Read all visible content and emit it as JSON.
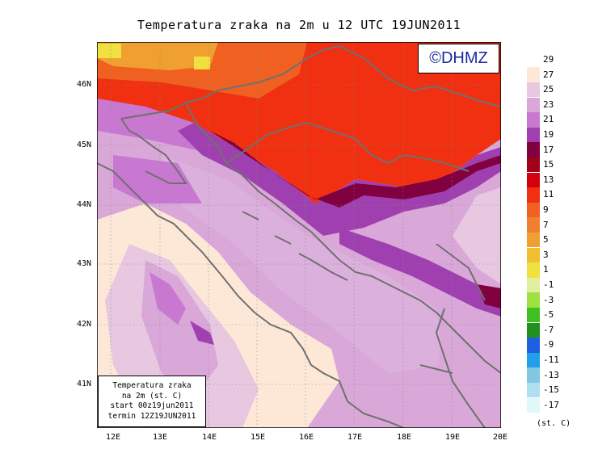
{
  "title": "Temperatura zraka na 2m u 12 UTC 19JUN2011",
  "logo_text": "©DHMZ",
  "info_box": {
    "line1": "Temperatura zraka",
    "line2": "na 2m (st. C)",
    "line3": "start 00z19jun2011",
    "line4": "termin 12Z19JUN2011"
  },
  "lon_ticks": [
    "12E",
    "13E",
    "14E",
    "15E",
    "16E",
    "17E",
    "18E",
    "19E",
    "20E"
  ],
  "lat_ticks": [
    "46N",
    "45N",
    "44N",
    "43N",
    "42N",
    "41N"
  ],
  "colorbar": {
    "units": "(st. C)",
    "levels": [
      "29",
      "27",
      "25",
      "23",
      "21",
      "19",
      "17",
      "15",
      "13",
      "11",
      "9",
      "7",
      "5",
      "3",
      "1",
      "-1",
      "-3",
      "-5",
      "-7",
      "-9",
      "-11",
      "-13",
      "-15",
      "-17"
    ],
    "colors": [
      "#fde8d8",
      "#e8c8e0",
      "#d9a8d8",
      "#c878d0",
      "#a040b0",
      "#800040",
      "#a00018",
      "#d40010",
      "#f03010",
      "#f06020",
      "#f08030",
      "#f0a030",
      "#f0c030",
      "#f0e040",
      "#e0f0a0",
      "#a0e040",
      "#40c020",
      "#209020",
      "#2060e0",
      "#20a0e8",
      "#80c8e0",
      "#b0e0f0",
      "#e0f8f8"
    ]
  }
}
